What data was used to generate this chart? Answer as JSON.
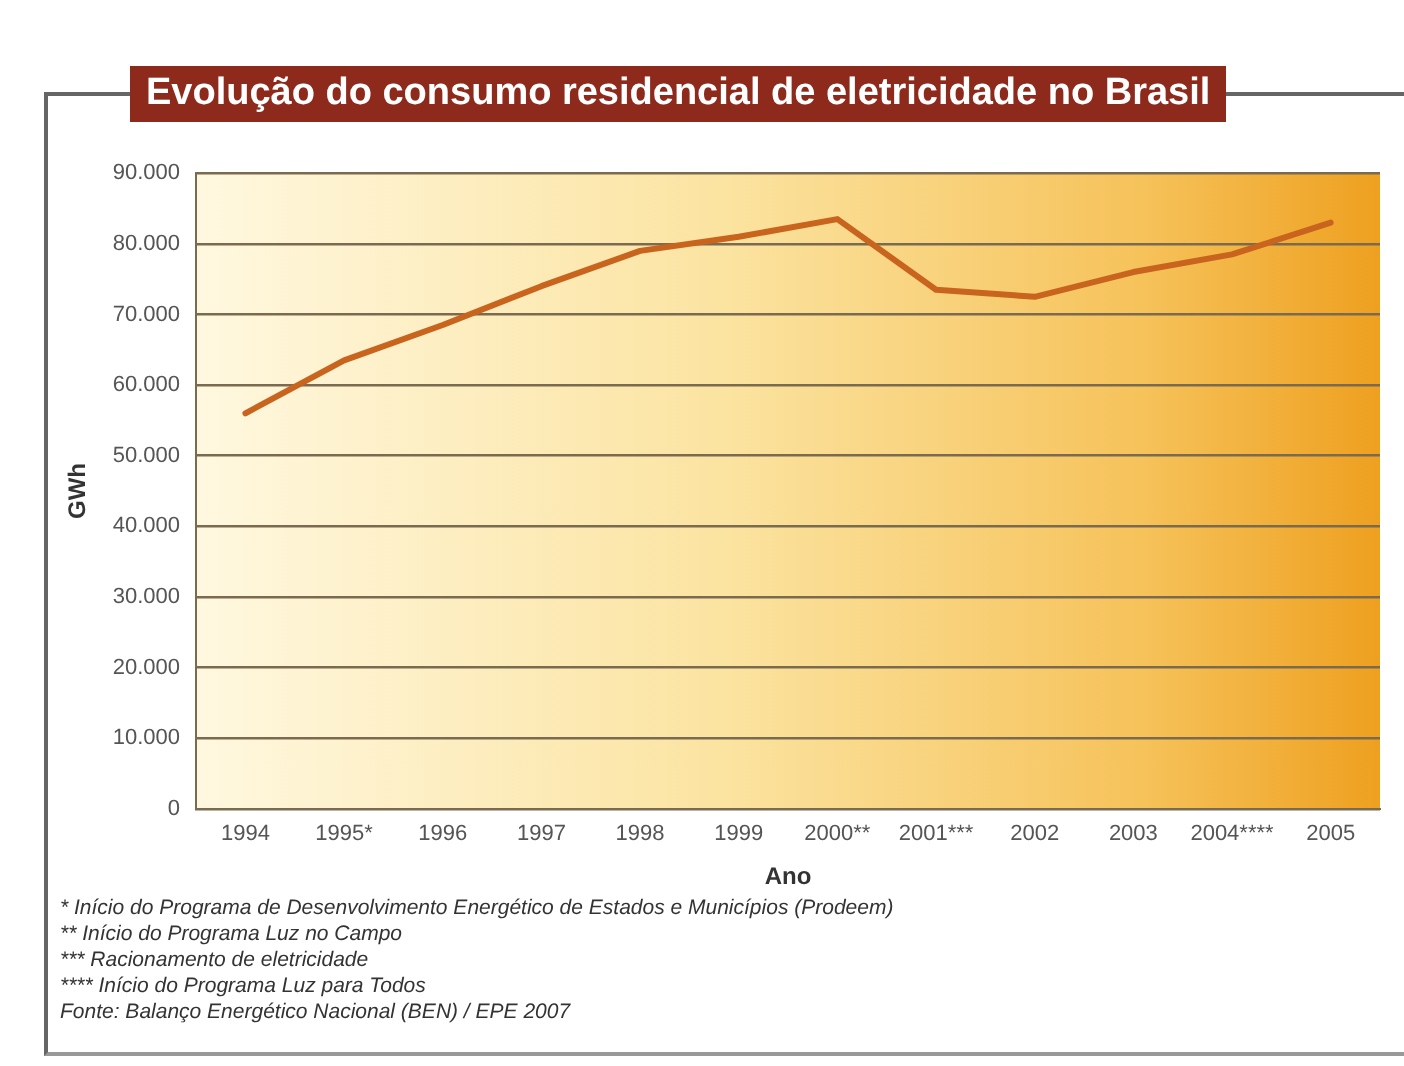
{
  "chart_data": {
    "type": "line",
    "title": "Evolução do consumo residencial de eletricidade no Brasil",
    "xlabel": "Ano",
    "ylabel": "GWh",
    "categories": [
      "1994",
      "1995*",
      "1996",
      "1997",
      "1998",
      "1999",
      "2000**",
      "2001***",
      "2002",
      "2003",
      "2004****",
      "2005"
    ],
    "series": [
      {
        "color": "#c8641e",
        "values": [
          56000,
          63500,
          68500,
          74000,
          79000,
          81000,
          83500,
          73500,
          72500,
          76000,
          78500,
          83000
        ]
      }
    ],
    "ylim": [
      0,
      90000
    ],
    "yticks": [
      {
        "value": 0,
        "label": "0"
      },
      {
        "value": 10000,
        "label": "10.000"
      },
      {
        "value": 20000,
        "label": "20.000"
      },
      {
        "value": 30000,
        "label": "30.000"
      },
      {
        "value": 40000,
        "label": "40.000"
      },
      {
        "value": 50000,
        "label": "50.000"
      },
      {
        "value": 60000,
        "label": "60.000"
      },
      {
        "value": 70000,
        "label": "70.000"
      },
      {
        "value": 80000,
        "label": "80.000"
      },
      {
        "value": 90000,
        "label": "90.000"
      }
    ],
    "grid": "y",
    "legend": false,
    "marker": "none",
    "line_style": "solid",
    "annotations": [
      "* Início do Programa de Desenvolvimento Energético de Estados e Municípios (Prodeem)",
      "** Início do Programa Luz no Campo",
      "*** Racionamento de eletricidade",
      "**** Início do Programa Luz para Todos",
      "Fonte: Balanço Energético Nacional (BEN) / EPE 2007"
    ]
  }
}
